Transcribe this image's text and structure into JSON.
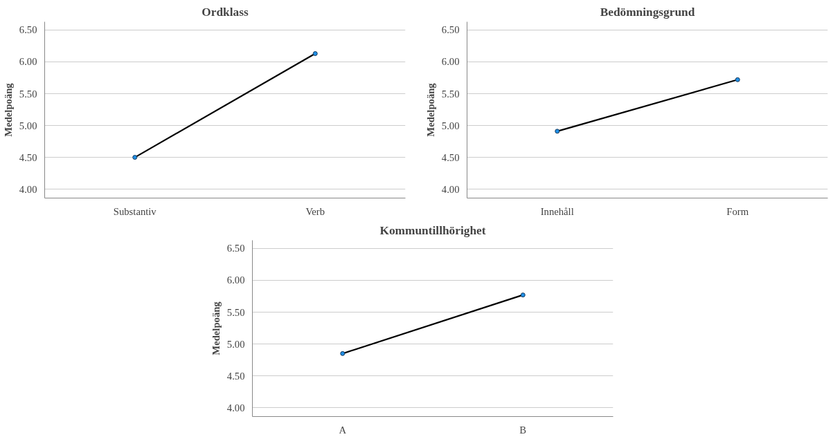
{
  "chart_data": [
    {
      "type": "line",
      "title": "Ordklass",
      "ylabel": "Medelpoäng",
      "categories": [
        "Substantiv",
        "Verb"
      ],
      "series": [
        {
          "color": "#000000",
          "values": [
            4.5,
            6.13
          ]
        }
      ],
      "ylim": [
        3.86,
        6.63
      ],
      "yticks": [
        {
          "value": 4,
          "label": "4.00"
        },
        {
          "value": 4.5,
          "label": "4.50"
        },
        {
          "value": 5,
          "label": "5.00"
        },
        {
          "value": 5.5,
          "label": "5.50"
        },
        {
          "value": 6,
          "label": "6.00"
        },
        {
          "value": 6.5,
          "label": "6.50"
        }
      ],
      "grid": "y",
      "marker": "circle",
      "line_style": "solid"
    },
    {
      "type": "line",
      "title": "Bedömningsgrund",
      "ylabel": "Medelpoäng",
      "categories": [
        "Innehåll",
        "Form"
      ],
      "series": [
        {
          "color": "#000000",
          "values": [
            4.91,
            5.72
          ]
        }
      ],
      "ylim": [
        3.86,
        6.63
      ],
      "yticks": [
        {
          "value": 4,
          "label": "4.00"
        },
        {
          "value": 4.5,
          "label": "4.50"
        },
        {
          "value": 5,
          "label": "5.00"
        },
        {
          "value": 5.5,
          "label": "5.50"
        },
        {
          "value": 6,
          "label": "6.00"
        },
        {
          "value": 6.5,
          "label": "6.50"
        }
      ],
      "grid": "y",
      "marker": "circle",
      "line_style": "solid"
    },
    {
      "type": "line",
      "title": "Kommuntillhörighet",
      "ylabel": "Medelpoäng",
      "categories": [
        "A",
        "B"
      ],
      "series": [
        {
          "color": "#000000",
          "values": [
            4.85,
            5.77
          ]
        }
      ],
      "ylim": [
        3.86,
        6.63
      ],
      "yticks": [
        {
          "value": 4,
          "label": "4.00"
        },
        {
          "value": 4.5,
          "label": "4.50"
        },
        {
          "value": 5,
          "label": "5.00"
        },
        {
          "value": 5.5,
          "label": "5.50"
        },
        {
          "value": 6,
          "label": "6.00"
        },
        {
          "value": 6.5,
          "label": "6.50"
        }
      ],
      "grid": "y",
      "marker": "circle",
      "line_style": "solid"
    }
  ]
}
